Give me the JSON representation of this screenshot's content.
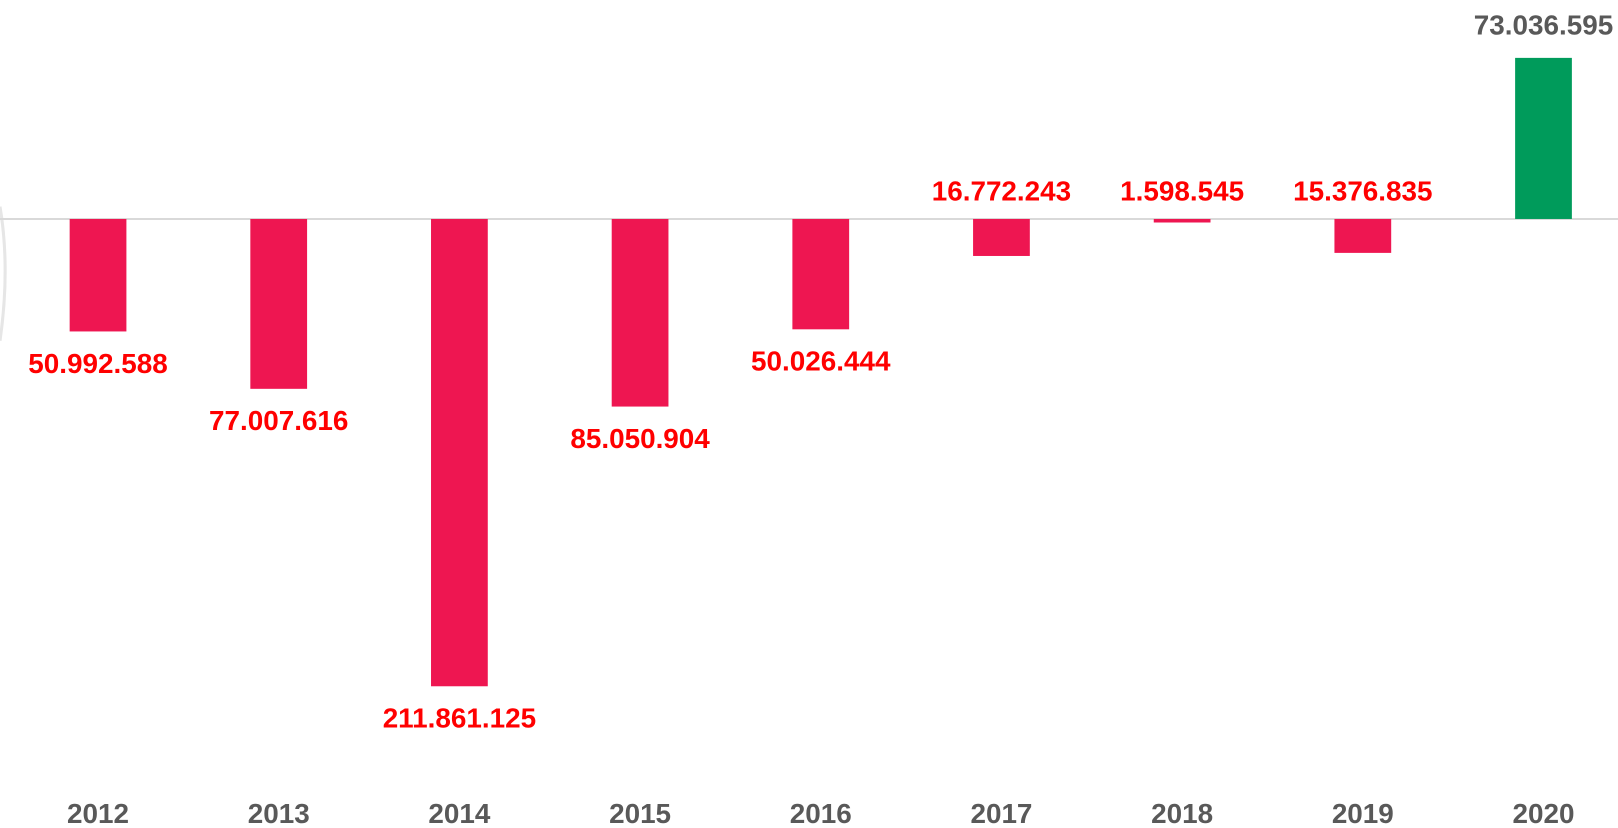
{
  "chart_data": {
    "type": "bar",
    "categories": [
      "2012",
      "2013",
      "2014",
      "2015",
      "2016",
      "2017",
      "2018",
      "2019",
      "2020"
    ],
    "values": [
      -50992588,
      -77007616,
      -211861125,
      -85050904,
      -50026444,
      -16772243,
      -1598545,
      -15376835,
      73036595
    ],
    "value_labels": [
      "50.992.588",
      "77.007.616",
      "211.861.125",
      "85.050.904",
      "50.026.444",
      "16.772.243",
      "1.598.545",
      "15.376.835",
      "73.036.595"
    ],
    "colors": [
      "#ee1651",
      "#ee1651",
      "#ee1651",
      "#ee1651",
      "#ee1651",
      "#ee1651",
      "#ee1651",
      "#ee1651",
      "#009b5b"
    ],
    "label_colors": [
      "#ff0000",
      "#ff0000",
      "#ff0000",
      "#ff0000",
      "#ff0000",
      "#ff0000",
      "#ff0000",
      "#ff0000",
      "#595959"
    ],
    "ylim": [
      -240000000,
      80000000
    ]
  }
}
